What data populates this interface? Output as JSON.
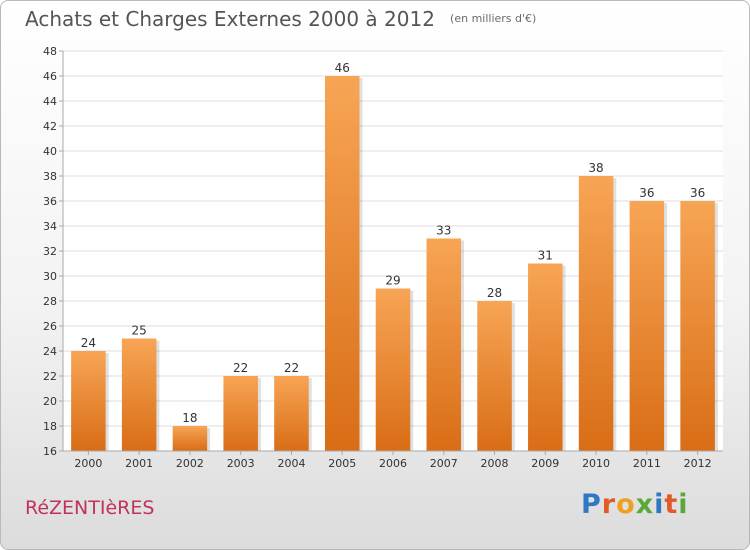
{
  "chart_data": {
    "type": "bar",
    "title": "Achats et Charges Externes 2000 à 2012",
    "subtitle": "(en milliers d'€)",
    "categories": [
      "2000",
      "2001",
      "2002",
      "2003",
      "2004",
      "2005",
      "2006",
      "2007",
      "2008",
      "2009",
      "2010",
      "2011",
      "2012"
    ],
    "values": [
      24,
      25,
      18,
      22,
      22,
      46,
      29,
      33,
      28,
      31,
      38,
      36,
      36
    ],
    "xlabel": "",
    "ylabel": "",
    "ylim": [
      16,
      48
    ],
    "yticks": [
      16,
      18,
      20,
      22,
      24,
      26,
      28,
      30,
      32,
      34,
      36,
      38,
      40,
      42,
      44,
      46,
      48
    ],
    "grid": true,
    "legend": "none",
    "bar_color_top": "#f7a555",
    "bar_color_bottom": "#d96d16"
  },
  "footer": {
    "town_name": "RéZENTIèRES",
    "brand": "Proxiti",
    "brand_colors": [
      "#2f78c4",
      "#e05a2a",
      "#f0a020",
      "#5aa83a",
      "#2f78c4",
      "#e05a2a",
      "#5aa83a"
    ]
  }
}
